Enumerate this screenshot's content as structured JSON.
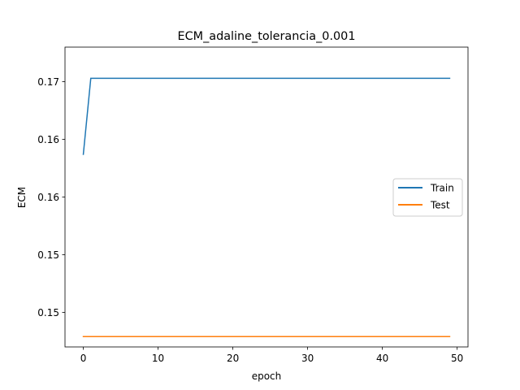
{
  "chart_data": {
    "type": "line",
    "title": "ECM_adaline_tolerancia_0.001",
    "xlabel": "epoch",
    "ylabel": "ECM",
    "xlim": [
      -2.45,
      51.45
    ],
    "ylim": [
      0.1455,
      0.1715
    ],
    "x_ticks": [
      0,
      10,
      20,
      30,
      40,
      50
    ],
    "x_tick_labels": [
      "0",
      "10",
      "20",
      "30",
      "40",
      "50"
    ],
    "y_ticks": [
      0.1485,
      0.1535,
      0.1585,
      0.1635,
      0.1685
    ],
    "y_tick_labels": [
      "0.15",
      "0.15",
      "0.16",
      "0.16",
      "0.17"
    ],
    "grid": false,
    "legend_position": "center-right",
    "series": [
      {
        "name": "Train",
        "color": "#1f77b4",
        "points": [
          [
            0,
            0.1622
          ],
          [
            1,
            0.1688
          ],
          [
            49,
            0.1688
          ]
        ]
      },
      {
        "name": "Test",
        "color": "#ff7f0e",
        "points": [
          [
            0,
            0.1464
          ],
          [
            49,
            0.1464
          ]
        ]
      }
    ]
  }
}
